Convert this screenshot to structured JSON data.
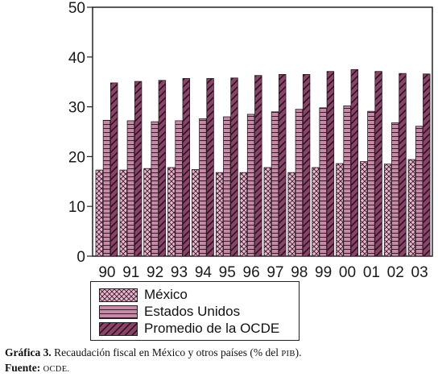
{
  "chart_data": {
    "type": "bar",
    "categories": [
      "90",
      "91",
      "92",
      "93",
      "94",
      "95",
      "96",
      "97",
      "98",
      "99",
      "00",
      "01",
      "02",
      "03"
    ],
    "series": [
      {
        "name": "México",
        "values": [
          17.3,
          17.3,
          17.6,
          17.8,
          17.4,
          16.8,
          16.8,
          17.8,
          16.8,
          17.8,
          18.6,
          19.0,
          18.5,
          19.4
        ],
        "fill": "#e8b8cf",
        "pattern": "crosshatch"
      },
      {
        "name": "Estados Unidos",
        "values": [
          27.3,
          27.2,
          27.0,
          27.2,
          27.6,
          28.0,
          28.5,
          29.0,
          29.5,
          29.8,
          30.2,
          29.1,
          26.8,
          26.1
        ],
        "fill": "#c58aa6",
        "pattern": "horizontal"
      },
      {
        "name": "Promedio de la OCDE",
        "values": [
          34.8,
          35.1,
          35.3,
          35.7,
          35.7,
          35.8,
          36.3,
          36.5,
          36.5,
          37.1,
          37.5,
          37.1,
          36.7,
          36.6
        ],
        "fill": "#8a4468",
        "pattern": "diagonal"
      }
    ],
    "ylim": [
      0,
      50
    ],
    "yticks": [
      0,
      10,
      20,
      30,
      40,
      50
    ],
    "grid": false,
    "legend": "bottom-center"
  },
  "caption": {
    "label": "Gráfica 3.",
    "text_before": "Recaudación fiscal en México y otros países (% del",
    "abbr": "PIB",
    "text_after": ").",
    "source_label": "Fuente:",
    "source": "OCDE."
  }
}
